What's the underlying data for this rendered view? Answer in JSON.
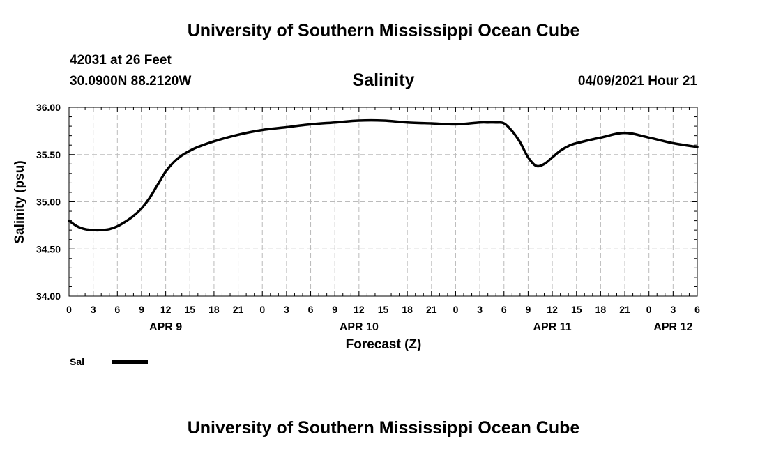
{
  "header": {
    "title": "University of Southern Mississippi Ocean Cube",
    "station": "42031 at 26 Feet",
    "location": "30.0900N  88.2120W",
    "datetime": "04/09/2021 Hour 21"
  },
  "footer": {
    "title": "University of Southern Mississippi Ocean Cube"
  },
  "chart_data": {
    "type": "line",
    "title": "Salinity",
    "xlabel": "Forecast (Z)",
    "ylabel": "Salinity (psu)",
    "ylim": [
      34.0,
      36.0
    ],
    "xlim_hours": [
      0,
      78
    ],
    "yticks": [
      "34.00",
      "34.50",
      "35.00",
      "35.50",
      "36.00"
    ],
    "ytick_values": [
      34.0,
      34.5,
      35.0,
      35.5,
      36.0
    ],
    "xtick_labels": [
      "0",
      "3",
      "6",
      "9",
      "12",
      "15",
      "18",
      "21",
      "0",
      "3",
      "6",
      "9",
      "12",
      "15",
      "18",
      "21",
      "0",
      "3",
      "6",
      "9",
      "12",
      "15",
      "18",
      "21",
      "0",
      "3",
      "6"
    ],
    "day_labels": [
      {
        "label": "APR 9",
        "hour": 12
      },
      {
        "label": "APR 10",
        "hour": 36
      },
      {
        "label": "APR 11",
        "hour": 60
      },
      {
        "label": "APR 12",
        "hour": 75
      }
    ],
    "grid": true,
    "legend": [
      {
        "name": "Sal",
        "color": "#000000"
      }
    ],
    "series": [
      {
        "name": "Sal",
        "color": "#000000",
        "x": [
          0,
          1,
          2,
          3,
          4,
          5,
          6,
          7,
          8,
          9,
          10,
          11,
          12,
          13,
          14,
          15,
          16,
          18,
          21,
          24,
          27,
          30,
          33,
          36,
          39,
          42,
          45,
          48,
          51,
          52,
          53,
          54,
          55,
          56,
          57,
          58,
          59,
          60,
          61,
          62,
          63,
          66,
          69,
          72,
          75,
          78
        ],
        "y": [
          34.8,
          34.74,
          34.71,
          34.7,
          34.7,
          34.71,
          34.74,
          34.79,
          34.85,
          34.93,
          35.04,
          35.18,
          35.32,
          35.42,
          35.49,
          35.54,
          35.58,
          35.64,
          35.71,
          35.76,
          35.79,
          35.82,
          35.84,
          35.86,
          35.86,
          35.84,
          35.83,
          35.82,
          35.84,
          35.84,
          35.84,
          35.83,
          35.75,
          35.63,
          35.47,
          35.38,
          35.4,
          35.47,
          35.54,
          35.59,
          35.62,
          35.68,
          35.73,
          35.68,
          35.62,
          35.58
        ]
      }
    ]
  }
}
